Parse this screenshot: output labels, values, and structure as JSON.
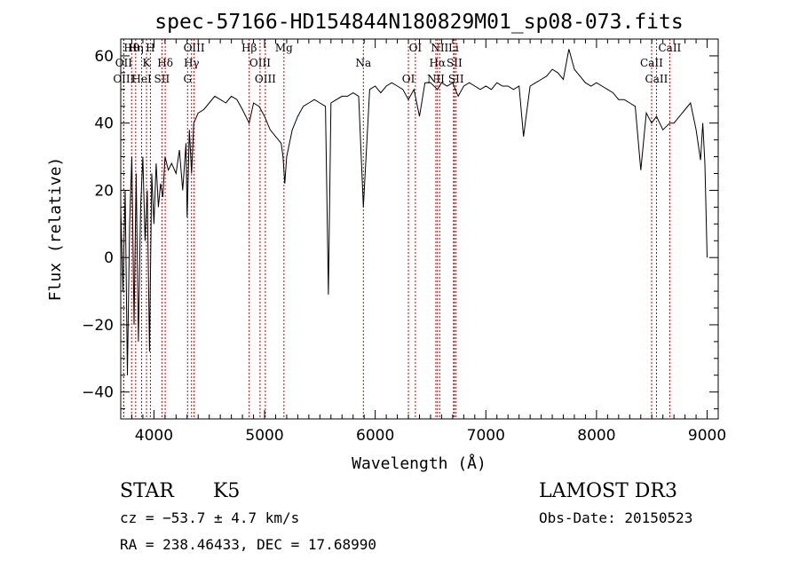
{
  "chart_data": {
    "type": "line",
    "title": "spec-57166-HD154844N180829M01_sp08-073.fits",
    "xlabel": "Wavelength (Å)",
    "ylabel": "Flux (relative)",
    "xlim": [
      3700,
      9100
    ],
    "ylim": [
      -48,
      65
    ],
    "xticks": [
      4000,
      5000,
      6000,
      7000,
      8000,
      9000
    ],
    "yticks": [
      -40,
      -20,
      0,
      20,
      40,
      60
    ],
    "xtick_labels": [
      "4000",
      "5000",
      "6000",
      "7000",
      "8000",
      "9000"
    ],
    "ytick_labels": [
      "−40",
      "−20",
      "0",
      "20",
      "40",
      "60"
    ],
    "spectrum": {
      "name": "flux",
      "x": [
        3700,
        3720,
        3740,
        3760,
        3780,
        3800,
        3820,
        3840,
        3860,
        3880,
        3900,
        3920,
        3940,
        3960,
        3980,
        4000,
        4020,
        4040,
        4060,
        4080,
        4100,
        4130,
        4160,
        4200,
        4230,
        4260,
        4290,
        4300,
        4320,
        4340,
        4360,
        4400,
        4450,
        4500,
        4550,
        4600,
        4650,
        4700,
        4750,
        4800,
        4861,
        4900,
        4950,
        5000,
        5050,
        5100,
        5150,
        5167,
        5183,
        5200,
        5250,
        5300,
        5350,
        5400,
        5450,
        5500,
        5550,
        5577,
        5600,
        5650,
        5700,
        5750,
        5800,
        5850,
        5893,
        5950,
        6000,
        6050,
        6100,
        6150,
        6200,
        6250,
        6300,
        6350,
        6400,
        6450,
        6500,
        6563,
        6600,
        6650,
        6700,
        6750,
        6800,
        6850,
        6900,
        6950,
        7000,
        7050,
        7100,
        7150,
        7200,
        7250,
        7300,
        7340,
        7400,
        7450,
        7500,
        7550,
        7600,
        7650,
        7700,
        7750,
        7800,
        7850,
        7900,
        7950,
        8000,
        8050,
        8100,
        8150,
        8200,
        8250,
        8300,
        8350,
        8400,
        8450,
        8498,
        8542,
        8600,
        8662,
        8700,
        8750,
        8800,
        8850,
        8900,
        8940,
        8960,
        8980,
        9000
      ],
      "y": [
        15,
        -10,
        20,
        -35,
        10,
        30,
        -20,
        25,
        -25,
        15,
        30,
        5,
        20,
        -28,
        25,
        10,
        28,
        15,
        22,
        18,
        30,
        26,
        28,
        25,
        32,
        20,
        34,
        12,
        38,
        25,
        40,
        43,
        44,
        46,
        48,
        47,
        46,
        48,
        47,
        44,
        40,
        46,
        45,
        42,
        38,
        36,
        34,
        30,
        22,
        30,
        38,
        42,
        45,
        46,
        47,
        46,
        45,
        -11,
        46,
        47,
        48,
        48,
        49,
        48,
        15,
        50,
        51,
        49,
        51,
        52,
        51,
        50,
        47,
        50,
        42,
        52,
        52,
        50,
        52,
        51,
        52,
        48,
        51,
        52,
        51,
        50,
        51,
        50,
        52,
        51,
        51,
        50,
        51,
        36,
        51,
        52,
        53,
        54,
        56,
        55,
        53,
        62,
        56,
        54,
        52,
        51,
        52,
        51,
        50,
        49,
        47,
        47,
        46,
        45,
        26,
        43,
        40,
        42,
        38,
        40,
        40,
        42,
        44,
        46,
        38,
        29,
        40,
        28,
        0
      ]
    },
    "lines": [
      {
        "label": "Hθ",
        "wavelength": 3798
      },
      {
        "label": "OII",
        "wavelength": 3727
      },
      {
        "label": "OIII",
        "wavelength": 3727
      },
      {
        "label": "Hη",
        "wavelength": 3835
      },
      {
        "label": "K",
        "wavelength": 3933
      },
      {
        "label": "HeI",
        "wavelength": 3889
      },
      {
        "label": "H",
        "wavelength": 3968
      },
      {
        "label": "Hδ",
        "wavelength": 4102
      },
      {
        "label": "SII",
        "wavelength": 4072
      },
      {
        "label": "OIII",
        "wavelength": 4363
      },
      {
        "label": "Hγ",
        "wavelength": 4340
      },
      {
        "label": "G",
        "wavelength": 4304
      },
      {
        "label": "Hβ",
        "wavelength": 4861
      },
      {
        "label": "OIII",
        "wavelength": 4959
      },
      {
        "label": "OIII",
        "wavelength": 5007
      },
      {
        "label": "Mg",
        "wavelength": 5175
      },
      {
        "label": "Na",
        "wavelength": 5893
      },
      {
        "label": "OI",
        "wavelength": 6300
      },
      {
        "label": "OI",
        "wavelength": 6363
      },
      {
        "label": "Hα",
        "wavelength": 6563
      },
      {
        "label": "NII",
        "wavelength": 6548
      },
      {
        "label": "NII",
        "wavelength": 6583
      },
      {
        "label": "SII",
        "wavelength": 6716
      },
      {
        "label": "SII",
        "wavelength": 6731
      },
      {
        "label": "Li",
        "wavelength": 6708
      },
      {
        "label": "CaII",
        "wavelength": 8498
      },
      {
        "label": "CaII",
        "wavelength": 8542
      },
      {
        "label": "CaII",
        "wavelength": 8662
      }
    ]
  },
  "info": {
    "object_class": "STAR",
    "subclass": "K5",
    "survey": "LAMOST DR3",
    "redshift": "cz = −53.7 ± 4.7 km/s",
    "obs_date": "Obs-Date: 20150523",
    "coords": "RA = 238.46433, DEC =  17.68990"
  },
  "colors": {
    "spectrum": "#000000",
    "line_marker": "#cc0000",
    "axes": "#000000",
    "background": "#ffffff"
  }
}
